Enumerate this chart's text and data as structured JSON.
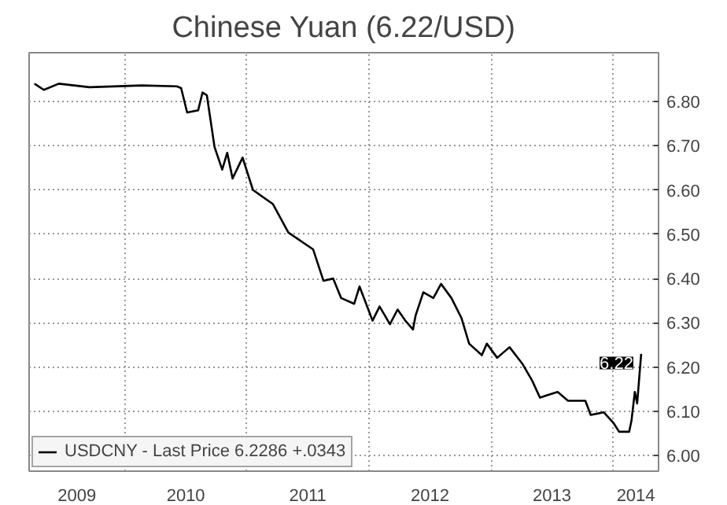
{
  "chart_data": {
    "type": "line",
    "title": "Chinese Yuan (6.22/USD)",
    "x": [
      "2009-04-05",
      "2009-05-03",
      "2009-06-17",
      "2009-09-17",
      "2010-02-20",
      "2010-06-05",
      "2010-06-18",
      "2010-07-06",
      "2010-08-08",
      "2010-08-21",
      "2010-09-03",
      "2010-09-26",
      "2010-10-19",
      "2010-11-03",
      "2010-11-19",
      "2010-12-19",
      "2011-01-19",
      "2011-03-20",
      "2011-05-05",
      "2011-07-18",
      "2011-08-18",
      "2011-09-16",
      "2011-10-10",
      "2011-11-18",
      "2011-12-04",
      "2012-01-12",
      "2012-02-02",
      "2012-03-04",
      "2012-03-27",
      "2012-04-19",
      "2012-05-12",
      "2012-05-20",
      "2012-06-12",
      "2012-07-12",
      "2012-08-04",
      "2012-09-04",
      "2012-10-04",
      "2012-10-27",
      "2012-12-04",
      "2012-12-19",
      "2013-01-19",
      "2013-02-25",
      "2013-04-04",
      "2013-05-04",
      "2013-05-27",
      "2013-06-19",
      "2013-07-19",
      "2013-08-19",
      "2013-10-10",
      "2013-10-26",
      "2013-12-04",
      "2014-01-03",
      "2014-01-19",
      "2014-02-18",
      "2014-02-25",
      "2014-03-07",
      "2014-03-14",
      "2014-03-26"
    ],
    "series": [
      {
        "name": "USDCNY - Last Price 6.2286 +.0343",
        "color": "#000000",
        "values": [
          6.84,
          6.826,
          6.84,
          6.832,
          6.836,
          6.834,
          6.83,
          6.775,
          6.78,
          6.82,
          6.814,
          6.697,
          6.646,
          6.684,
          6.626,
          6.673,
          6.6,
          6.568,
          6.504,
          6.466,
          6.395,
          6.4,
          6.356,
          6.343,
          6.382,
          6.305,
          6.337,
          6.297,
          6.33,
          6.305,
          6.285,
          6.317,
          6.369,
          6.356,
          6.388,
          6.356,
          6.311,
          6.253,
          6.227,
          6.253,
          6.221,
          6.245,
          6.208,
          6.169,
          6.131,
          6.137,
          6.144,
          6.124,
          6.124,
          6.092,
          6.098,
          6.073,
          6.054,
          6.054,
          6.079,
          6.144,
          6.118,
          6.23
        ]
      }
    ],
    "xlim": [
      "2009-03-20",
      "2014-05-17"
    ],
    "xticks": [
      {
        "value": "2010-01-01",
        "label": null
      },
      {
        "value": "2011-01-01",
        "label": null
      },
      {
        "value": "2012-01-01",
        "label": null
      },
      {
        "value": "2013-01-01",
        "label": null
      },
      {
        "value": "2014-01-01",
        "label": null
      },
      {
        "value": "2009-08-10",
        "label": "2009"
      },
      {
        "value": "2010-07-02",
        "label": "2010"
      },
      {
        "value": "2011-07-02",
        "label": "2011"
      },
      {
        "value": "2012-07-02",
        "label": "2012"
      },
      {
        "value": "2013-07-02",
        "label": "2013"
      },
      {
        "value": "2014-03-10",
        "label": "2014"
      }
    ],
    "ylim": [
      5.965,
      6.91
    ],
    "yticks": [
      {
        "value": 6.0,
        "label": "6.00"
      },
      {
        "value": 6.1,
        "label": "6.10"
      },
      {
        "value": 6.2,
        "label": "6.20"
      },
      {
        "value": 6.3,
        "label": "6.30"
      },
      {
        "value": 6.4,
        "label": "6.40"
      },
      {
        "value": 6.5,
        "label": "6.50"
      },
      {
        "value": 6.6,
        "label": "6.60"
      },
      {
        "value": 6.7,
        "label": "6.70"
      },
      {
        "value": 6.8,
        "label": "6.80"
      }
    ],
    "annotations": [
      {
        "text": "6.22",
        "x": "2014-03-26",
        "y": 6.22
      }
    ],
    "grid": true,
    "legend": "bottom left",
    "line_style": "solid"
  }
}
